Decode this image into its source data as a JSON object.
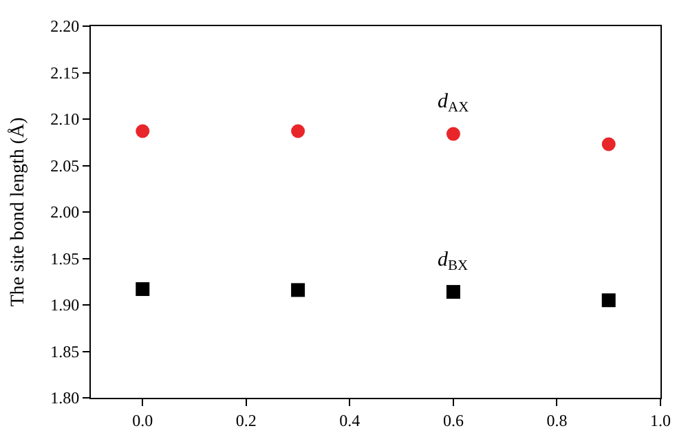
{
  "chart_data": {
    "type": "scatter",
    "ylabel": "The site bond length (Å)",
    "x": [
      0.0,
      0.3,
      0.6,
      0.9
    ],
    "series": [
      {
        "color": "#e8262a",
        "values": [
          2.087,
          2.087,
          2.084,
          2.073
        ],
        "marker": "circle"
      },
      {
        "color": "#000000",
        "values": [
          1.917,
          1.916,
          1.914,
          1.905
        ],
        "marker": "square"
      }
    ],
    "annotations": [
      "d$_{AX}$",
      "d$_{BX}$"
    ],
    "xlim": [
      -0.1,
      1.0
    ],
    "xticks": [
      {
        "value": 0.0,
        "label": "0.0"
      },
      {
        "value": 0.2,
        "label": "0.2"
      },
      {
        "value": 0.4,
        "label": "0.4"
      },
      {
        "value": 0.6,
        "label": "0.6"
      },
      {
        "value": 0.8,
        "label": "0.8"
      },
      {
        "value": 1.0,
        "label": "1.0"
      }
    ],
    "ylim": [
      1.8,
      2.2
    ],
    "yticks": [
      {
        "value": 1.8,
        "label": "1.80"
      },
      {
        "value": 1.85,
        "label": "1.85"
      },
      {
        "value": 1.9,
        "label": "1.90"
      },
      {
        "value": 1.95,
        "label": "1.95"
      },
      {
        "value": 2.0,
        "label": "2.00"
      },
      {
        "value": 2.05,
        "label": "2.05"
      },
      {
        "value": 2.1,
        "label": "2.10"
      },
      {
        "value": 2.15,
        "label": "2.15"
      },
      {
        "value": 2.2,
        "label": "2.20"
      }
    ]
  }
}
